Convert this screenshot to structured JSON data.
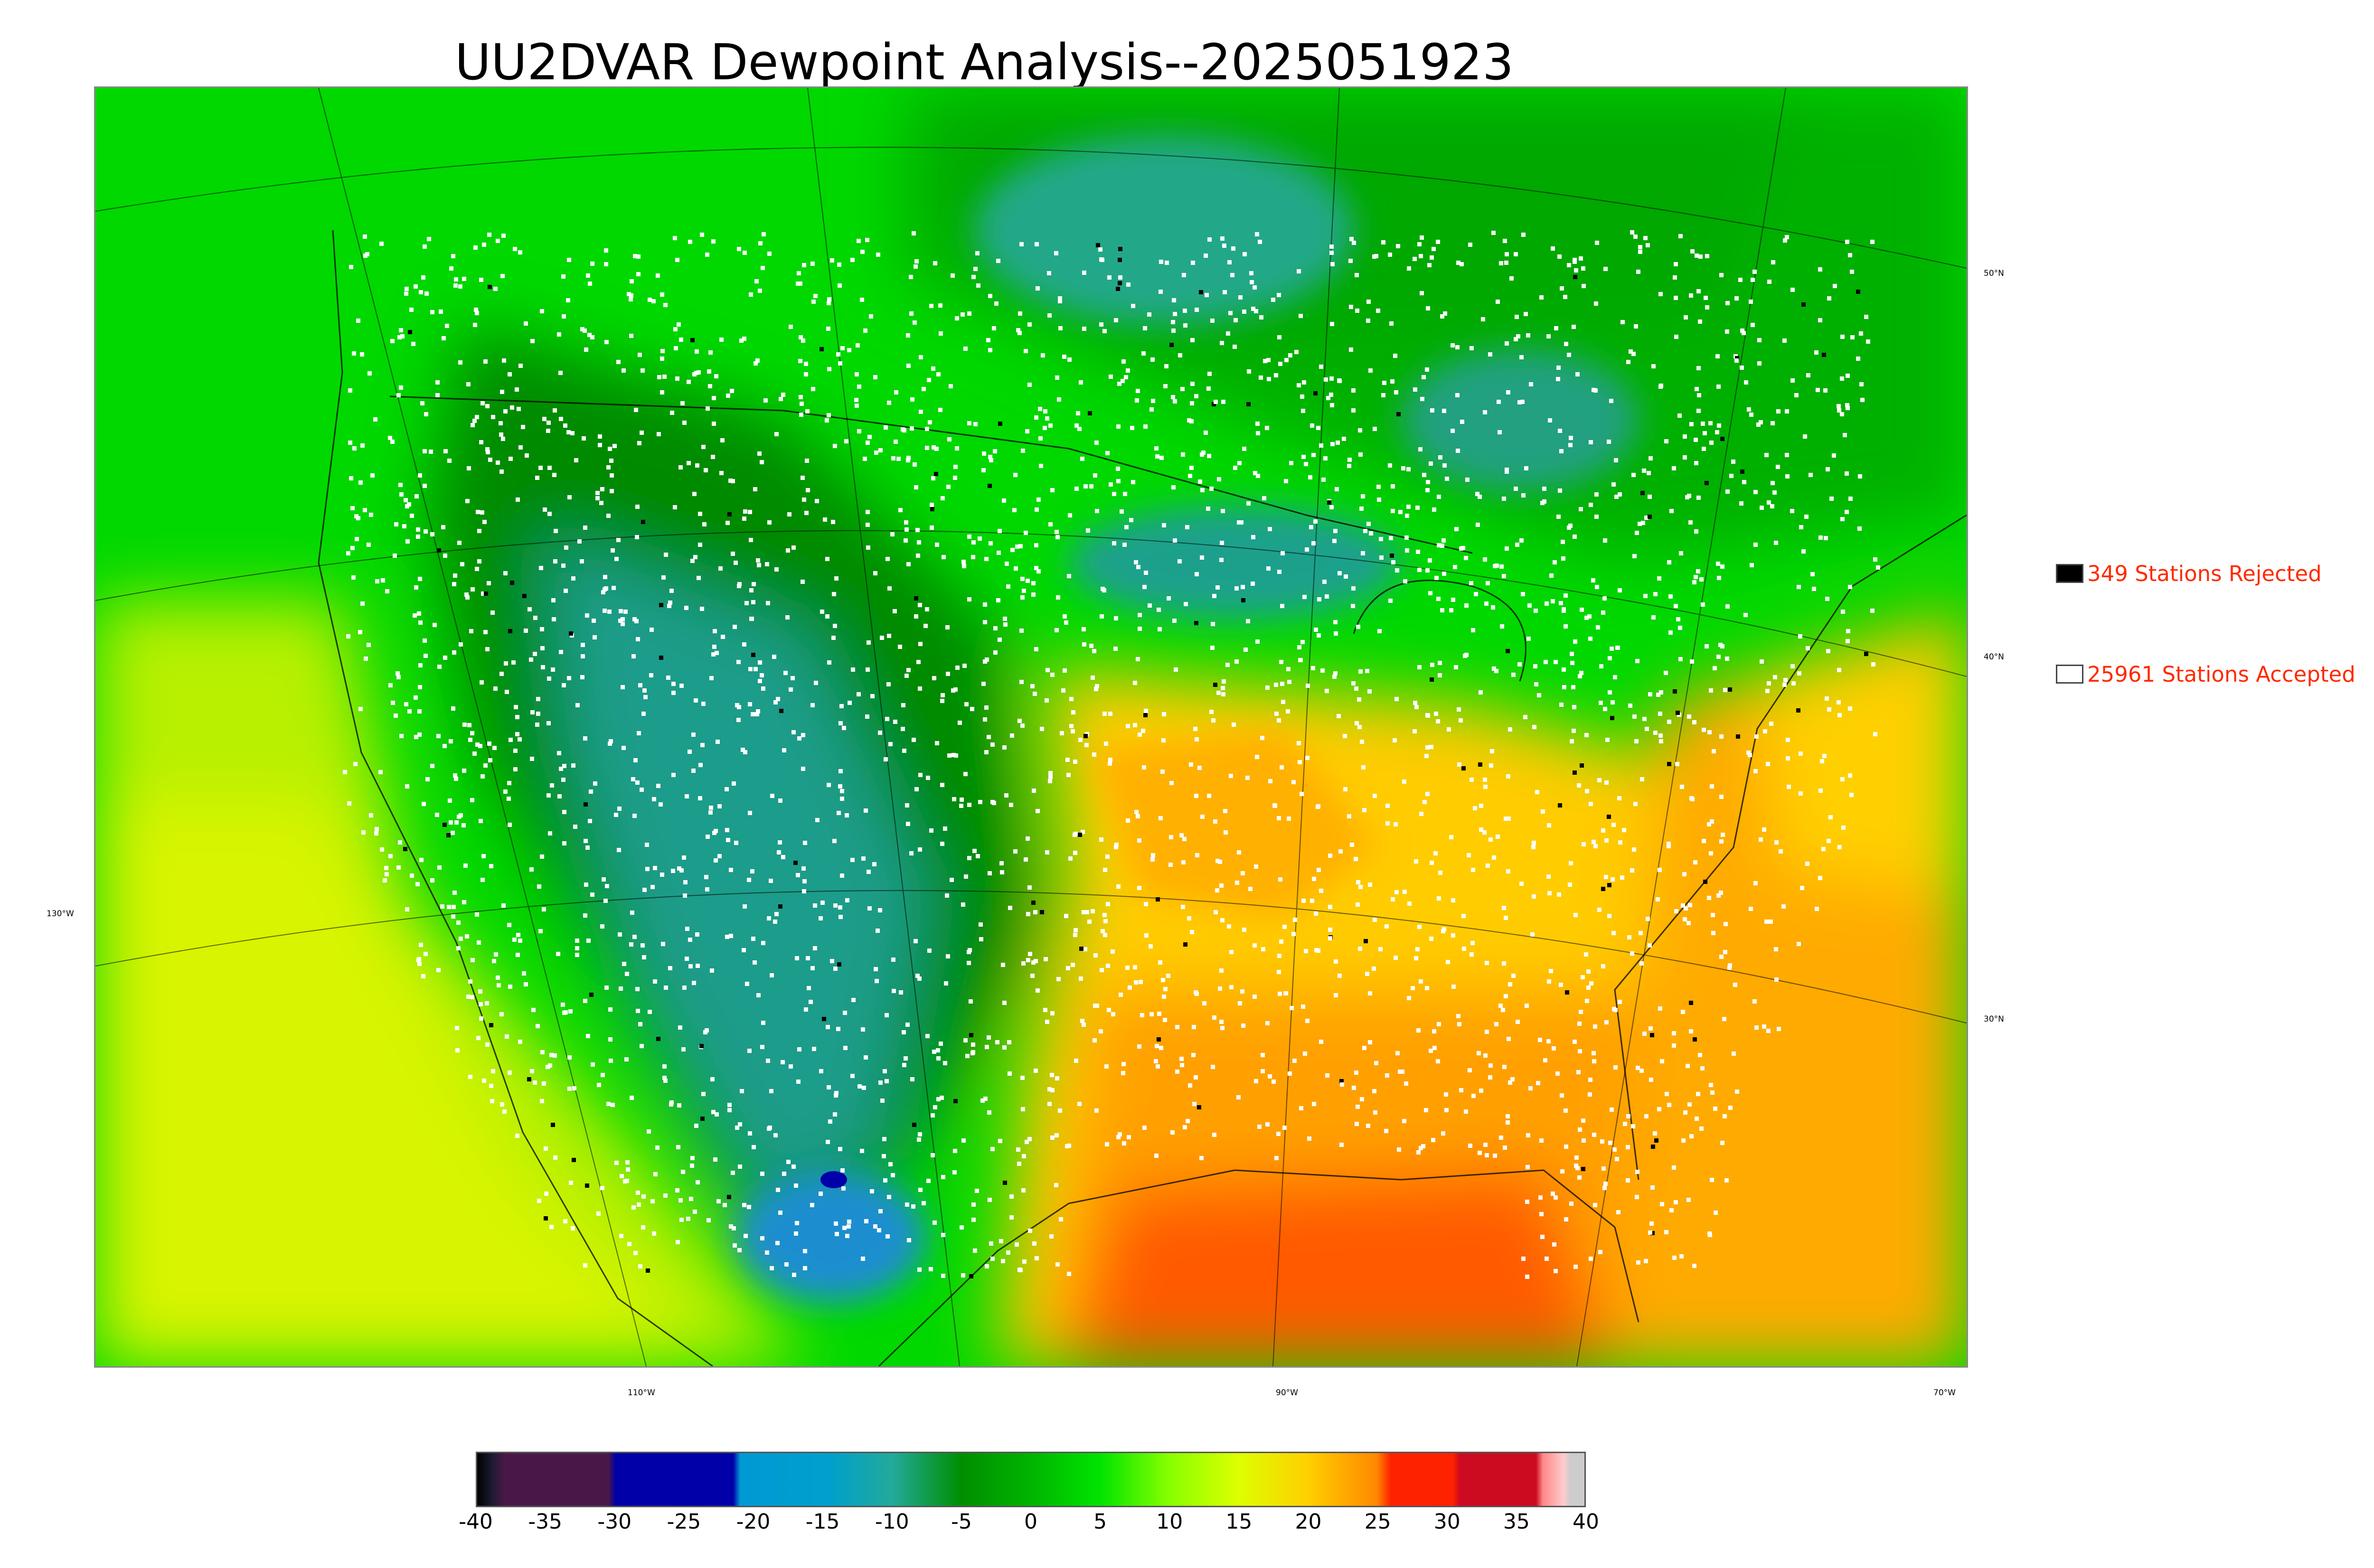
{
  "title": "UU2DVAR Dewpoint Analysis--2025051923",
  "legend": [
    {
      "count_label": "349 Stations Rejected",
      "swatch_color": "#000000"
    },
    {
      "count_label": "25961 Stations Accepted",
      "swatch_color": "#ffffff"
    }
  ],
  "grid_labels": {
    "lat": [
      "50°N",
      "40°N",
      "30°N"
    ],
    "lon": [
      "130°W",
      "110°W",
      "90°W",
      "70°W"
    ]
  },
  "colorbar": {
    "ticks": [
      "-40",
      "-35",
      "-30",
      "-25",
      "-20",
      "-15",
      "-10",
      "-5",
      "0",
      "5",
      "10",
      "15",
      "20",
      "25",
      "30",
      "35",
      "40"
    ],
    "range": [
      -40,
      40
    ],
    "stops": [
      {
        "v": -40,
        "c": "#000000"
      },
      {
        "v": -39,
        "c": "#1a1a2e"
      },
      {
        "v": -38,
        "c": "#4a1848"
      },
      {
        "v": -30.5,
        "c": "#4a1848"
      },
      {
        "v": -30,
        "c": "#0000a8"
      },
      {
        "v": -21.5,
        "c": "#0000a8"
      },
      {
        "v": -21,
        "c": "#0099d4"
      },
      {
        "v": -14.5,
        "c": "#00a0cc"
      },
      {
        "v": -10,
        "c": "#22aa99"
      },
      {
        "v": -5,
        "c": "#008e00"
      },
      {
        "v": 0,
        "c": "#00b400"
      },
      {
        "v": 5,
        "c": "#00e400"
      },
      {
        "v": 10,
        "c": "#88ff00"
      },
      {
        "v": 15,
        "c": "#ddff00"
      },
      {
        "v": 20,
        "c": "#ffd000"
      },
      {
        "v": 25,
        "c": "#ff8800"
      },
      {
        "v": 26,
        "c": "#ff2200"
      },
      {
        "v": 30.5,
        "c": "#ff2200"
      },
      {
        "v": 31,
        "c": "#cc0a20"
      },
      {
        "v": 36.5,
        "c": "#cc0a20"
      },
      {
        "v": 37,
        "c": "#ff8888"
      },
      {
        "v": 38.5,
        "c": "#ffcccc"
      },
      {
        "v": 39,
        "c": "#cccccc"
      },
      {
        "v": 40,
        "c": "#cccccc"
      }
    ]
  }
}
